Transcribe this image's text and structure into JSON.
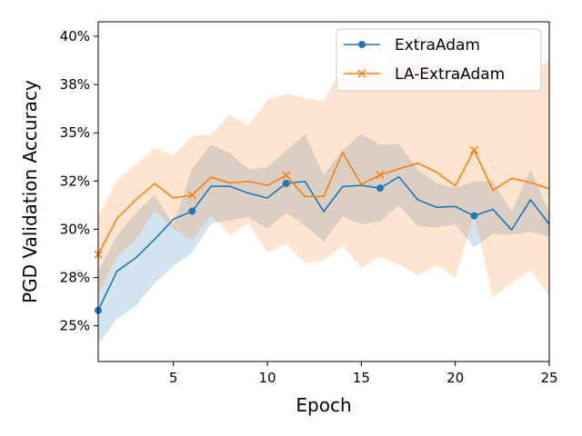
{
  "chart_data": {
    "type": "line",
    "title": "",
    "xlabel": "Epoch",
    "ylabel": "PGD Validation Accuracy",
    "xlim": [
      1,
      25
    ],
    "ylim": [
      0.2315,
      0.4075
    ],
    "xticks": [
      5,
      10,
      15,
      20,
      25
    ],
    "xtick_labels": [
      "5",
      "10",
      "15",
      "20",
      "25"
    ],
    "yticks": [
      0.25,
      0.275,
      0.3,
      0.325,
      0.35,
      0.375,
      0.4
    ],
    "ytick_labels": [
      "25%",
      "28%",
      "30%",
      "32%",
      "35%",
      "38%",
      "40%"
    ],
    "legend_position": "top-right",
    "grid": false,
    "x": [
      1,
      2,
      3,
      4,
      5,
      6,
      7,
      8,
      9,
      10,
      11,
      12,
      13,
      14,
      15,
      16,
      17,
      18,
      19,
      20,
      21,
      22,
      23,
      24,
      25
    ],
    "series": [
      {
        "name": "ExtraAdam",
        "color": "#1f77b4",
        "marker": "circle",
        "marker_every": [
          1,
          6,
          11,
          16,
          21
        ],
        "values": [
          0.258,
          0.2783,
          0.2852,
          0.2948,
          0.3052,
          0.3094,
          0.3223,
          0.3223,
          0.3187,
          0.3162,
          0.3238,
          0.3248,
          0.3092,
          0.3221,
          0.3228,
          0.3213,
          0.3272,
          0.3153,
          0.3114,
          0.3118,
          0.307,
          0.3103,
          0.2997,
          0.3153,
          0.3026
        ],
        "band_lower": [
          0.2405,
          0.2535,
          0.2603,
          0.2721,
          0.281,
          0.288,
          0.303,
          0.3046,
          0.3063,
          0.3003,
          0.3085,
          0.3018,
          0.2938,
          0.3065,
          0.3026,
          0.3041,
          0.3124,
          0.3015,
          0.301,
          0.3025,
          0.2906,
          0.2976,
          0.297,
          0.2988,
          0.2962
        ],
        "band_upper": [
          0.278,
          0.297,
          0.3085,
          0.318,
          0.3021,
          0.3314,
          0.344,
          0.3395,
          0.331,
          0.3322,
          0.3408,
          0.3494,
          0.3278,
          0.341,
          0.3495,
          0.3438,
          0.3443,
          0.331,
          0.324,
          0.3213,
          0.3248,
          0.325,
          0.3089,
          0.331,
          0.3089
        ]
      },
      {
        "name": "LA-ExtraAdam",
        "color": "#ff7f0e",
        "marker": "x",
        "marker_every": [
          1,
          6,
          11,
          16,
          21
        ],
        "values": [
          0.287,
          0.3056,
          0.3153,
          0.3237,
          0.3162,
          0.3178,
          0.327,
          0.324,
          0.3248,
          0.3227,
          0.328,
          0.317,
          0.317,
          0.3398,
          0.3233,
          0.3282,
          0.3313,
          0.3343,
          0.3296,
          0.3225,
          0.341,
          0.3202,
          0.3264,
          0.3242,
          0.321
        ],
        "band_lower": [
          0.266,
          0.2862,
          0.2945,
          0.3096,
          0.3002,
          0.2943,
          0.3074,
          0.2968,
          0.303,
          0.2876,
          0.2924,
          0.2824,
          0.284,
          0.2918,
          0.28,
          0.2859,
          0.2818,
          0.276,
          0.2815,
          0.2748,
          0.3076,
          0.2651,
          0.2721,
          0.2787,
          0.2658
        ],
        "band_upper": [
          0.3068,
          0.3256,
          0.3333,
          0.342,
          0.3384,
          0.3481,
          0.3491,
          0.3593,
          0.3536,
          0.3669,
          0.3702,
          0.3682,
          0.366,
          0.3848,
          0.3873,
          0.3823,
          0.3898,
          0.39,
          0.3806,
          0.3723,
          0.384,
          0.3718,
          0.374,
          0.38,
          0.3878
        ]
      }
    ]
  }
}
